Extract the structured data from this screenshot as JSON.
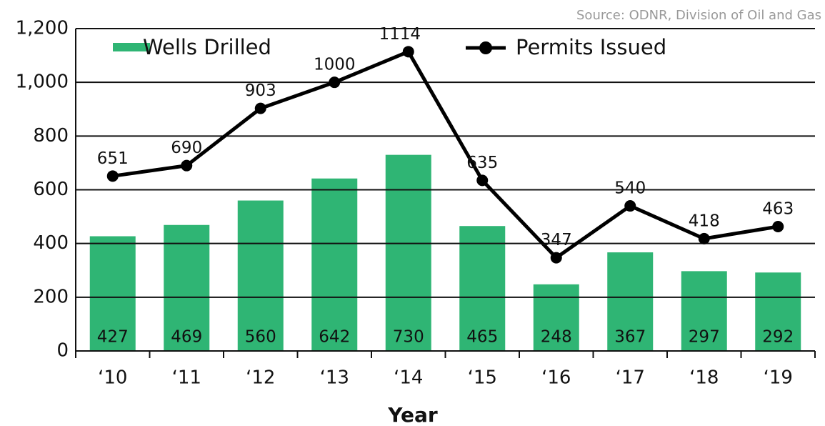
{
  "chart_data": {
    "type": "bar_line",
    "source": "Source: ODNR, Division of Oil and Gas",
    "x_label": "Year",
    "categories": [
      "‘10",
      "‘11",
      "‘12",
      "‘13",
      "‘14",
      "‘15",
      "‘16",
      "‘17",
      "‘18",
      "‘19"
    ],
    "series": [
      {
        "name": "Wells Drilled",
        "type": "bar",
        "color": "#2fb574",
        "values": [
          427,
          469,
          560,
          642,
          730,
          465,
          248,
          367,
          297,
          292
        ]
      },
      {
        "name": "Permits Issued",
        "type": "line",
        "color": "#000000",
        "values": [
          651,
          690,
          903,
          1000,
          1114,
          635,
          347,
          540,
          418,
          463
        ]
      }
    ],
    "ylim": [
      0,
      1200
    ],
    "yticks": [
      0,
      200,
      400,
      600,
      800,
      {
        "value": 1000,
        "label": "1,000"
      },
      {
        "value": 1200,
        "label": "1,200"
      }
    ],
    "grid": true,
    "legend": "top"
  }
}
